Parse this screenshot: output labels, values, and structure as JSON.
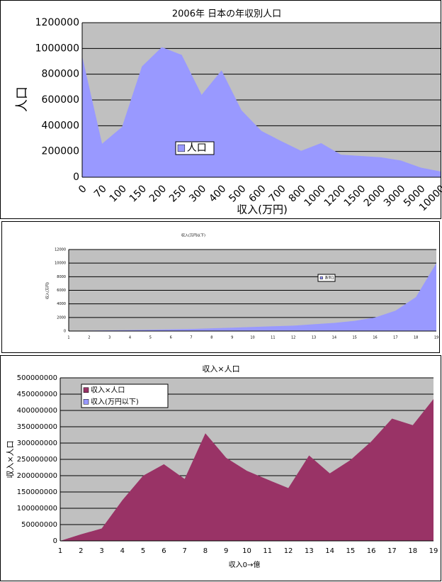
{
  "chart_data": [
    {
      "type": "area",
      "title": "2006年  日本の年収別人口",
      "ylabel": "人口",
      "xlabel": "収入(万円)",
      "categories": [
        "0",
        "70",
        "100",
        "150",
        "200",
        "250",
        "300",
        "400",
        "500",
        "600",
        "700",
        "800",
        "1000",
        "1200",
        "1500",
        "2000",
        "3000",
        "5000",
        "10000"
      ],
      "series": [
        {
          "name": "人口",
          "color": "#9999ff",
          "values": [
            940000,
            260000,
            390000,
            860000,
            1010000,
            950000,
            640000,
            830000,
            520000,
            360000,
            280000,
            205000,
            265000,
            175000,
            165000,
            155000,
            130000,
            75000,
            45000
          ]
        }
      ],
      "ylim": [
        0,
        1200000
      ],
      "yticks": [
        0,
        200000,
        400000,
        600000,
        800000,
        1000000,
        1200000
      ],
      "grid": true
    },
    {
      "type": "area",
      "title": "収入(万円以下)",
      "ylabel": "収入(万円)",
      "categories": [
        1,
        2,
        3,
        4,
        5,
        6,
        7,
        8,
        9,
        10,
        11,
        12,
        13,
        14,
        15,
        16,
        17,
        18,
        19
      ],
      "series": [
        {
          "name": "系列1",
          "color": "#9999ff",
          "values": [
            0,
            70,
            100,
            150,
            200,
            250,
            300,
            400,
            500,
            600,
            700,
            800,
            1000,
            1200,
            1500,
            2000,
            3000,
            5000,
            10000
          ]
        }
      ],
      "ylim": [
        0,
        12000
      ],
      "yticks": [
        0,
        2000,
        4000,
        6000,
        8000,
        10000,
        12000
      ],
      "grid": true
    },
    {
      "type": "area",
      "title": "収入×人口",
      "ylabel": "収入×人口",
      "xlabel": "収入0→億",
      "categories": [
        1,
        2,
        3,
        4,
        5,
        6,
        7,
        8,
        9,
        10,
        11,
        12,
        13,
        14,
        15,
        16,
        17,
        18,
        19
      ],
      "series": [
        {
          "name": "収入×人口",
          "color": "#993366",
          "values": [
            0,
            20000000,
            38000000,
            125000000,
            200000000,
            235000000,
            190000000,
            330000000,
            255000000,
            215000000,
            188000000,
            162000000,
            262000000,
            207000000,
            248000000,
            305000000,
            375000000,
            355000000,
            435000000
          ]
        },
        {
          "name": "収入(万円以下)",
          "color": "#9999ff",
          "values": [
            0,
            70,
            100,
            150,
            200,
            250,
            300,
            400,
            500,
            600,
            700,
            800,
            1000,
            1200,
            1500,
            2000,
            3000,
            5000,
            10000
          ]
        }
      ],
      "ylim": [
        0,
        500000000
      ],
      "yticks": [
        0,
        50000000,
        100000000,
        150000000,
        200000000,
        250000000,
        300000000,
        350000000,
        400000000,
        450000000,
        500000000
      ],
      "grid": true
    }
  ]
}
